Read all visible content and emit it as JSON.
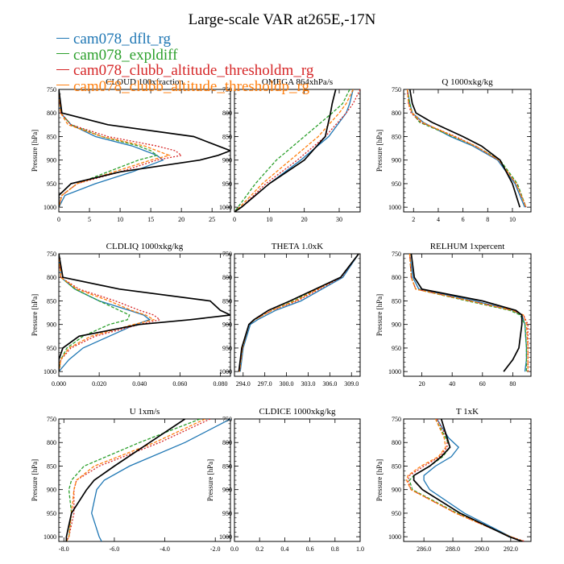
{
  "figure": {
    "title": "Large-scale VAR at265E,-17N",
    "legend": [
      {
        "label": "cam078_dflt_rg",
        "color": "#1f77b4"
      },
      {
        "label": "cam078_expldiff",
        "color": "#2ca02c"
      },
      {
        "label": "cam078_clubb_altitude_thresholdm_rg",
        "color": "#d62728"
      },
      {
        "label": "cam078_clubb_altitude_thresholdp_rg",
        "color": "#ff7f0e"
      }
    ],
    "ref_color": "#000000"
  },
  "chart_data": [
    {
      "type": "line",
      "title": "CLOUD 100xfraction",
      "ylabel": "Pressure [hPa]",
      "xlim": [
        0,
        28
      ],
      "xticks": [
        0,
        5,
        10,
        15,
        20,
        25
      ],
      "xtick_labels": [
        "0",
        "5",
        "10",
        "15",
        "20",
        "25"
      ],
      "ylim": [
        1010,
        750
      ],
      "yticks": [
        750,
        800,
        850,
        900,
        950,
        1000
      ],
      "ytick_labels": [
        "750",
        "800",
        "850",
        "900",
        "950",
        "1000"
      ],
      "y": [
        750,
        800,
        825,
        850,
        870,
        880,
        890,
        900,
        925,
        950,
        975,
        1000
      ],
      "ref": [
        0,
        0.5,
        8,
        22,
        26,
        28,
        26,
        23,
        10,
        2,
        0,
        0
      ],
      "series": [
        {
          "values": [
            0,
            0.3,
            2,
            6,
            12,
            14,
            16,
            17,
            12,
            6,
            1,
            0
          ]
        },
        {
          "values": [
            0,
            0.3,
            2,
            7,
            13,
            15,
            16,
            13,
            8,
            3,
            0.5,
            0
          ]
        },
        {
          "values": [
            0,
            0.3,
            2,
            8,
            16,
            19,
            20,
            16,
            10,
            3,
            0.5,
            0
          ]
        },
        {
          "values": [
            0,
            0.3,
            1.5,
            7,
            14,
            16,
            18,
            15,
            9,
            3,
            0.5,
            0
          ]
        }
      ]
    },
    {
      "type": "line",
      "title": "OMEGA 864xhPa/s",
      "ylabel": "",
      "xlim": [
        0,
        36
      ],
      "xticks": [
        0,
        10,
        20,
        30
      ],
      "xtick_labels": [
        "0",
        "10",
        "20",
        "30"
      ],
      "ylim": [
        1010,
        750
      ],
      "yticks": [
        750,
        800,
        850,
        900,
        950,
        1000
      ],
      "ytick_labels": [
        "750",
        "800",
        "850",
        "900",
        "950",
        "1000"
      ],
      "y": [
        750,
        780,
        800,
        850,
        900,
        950,
        1000,
        1010
      ],
      "ref": [
        29,
        28,
        27.5,
        26,
        20,
        10,
        2,
        0
      ],
      "series": [
        {
          "values": [
            34,
            33,
            32,
            27,
            19,
            10,
            2,
            0
          ]
        },
        {
          "values": [
            33,
            31,
            28,
            20,
            12,
            6,
            1,
            0
          ]
        },
        {
          "values": [
            36,
            34,
            32,
            26,
            18,
            9,
            2,
            0
          ]
        },
        {
          "values": [
            34,
            32,
            30,
            24,
            16,
            8,
            1.5,
            0
          ]
        }
      ]
    },
    {
      "type": "line",
      "title": "Q 1000xkg/kg",
      "ylabel": "Pressure [hPa]",
      "xlim": [
        1.2,
        11.5
      ],
      "xticks": [
        2,
        4,
        6,
        8,
        10
      ],
      "xtick_labels": [
        "2",
        "4",
        "6",
        "8",
        "10"
      ],
      "ylim": [
        1010,
        750
      ],
      "yticks": [
        750,
        800,
        850,
        900,
        950,
        1000
      ],
      "ytick_labels": [
        "750",
        "800",
        "850",
        "900",
        "950",
        "1000"
      ],
      "y": [
        750,
        780,
        800,
        820,
        850,
        870,
        900,
        950,
        1000
      ],
      "ref": [
        1.7,
        1.9,
        2.2,
        3.5,
        6,
        7.5,
        9,
        10,
        10.6
      ],
      "series": [
        {
          "values": [
            1.5,
            1.7,
            1.9,
            2.8,
            5,
            6.8,
            8.8,
            10.2,
            11
          ],
          "dash": "1"
        },
        {
          "values": [
            1.5,
            1.7,
            1.9,
            2.5,
            5.2,
            7,
            9,
            10.4,
            11.1
          ]
        },
        {
          "values": [
            1.5,
            1.6,
            1.8,
            2.6,
            5.4,
            7,
            8.9,
            10.3,
            11.1
          ]
        },
        {
          "values": [
            1.5,
            1.6,
            1.9,
            2.7,
            5.3,
            7,
            8.9,
            10.3,
            11.1
          ]
        }
      ]
    },
    {
      "type": "line",
      "title": "CLDLIQ 1000xkg/kg",
      "ylabel": "Pressure [hPa]",
      "xlim": [
        0,
        0.085
      ],
      "xticks": [
        0,
        0.02,
        0.04,
        0.06,
        0.08
      ],
      "xtick_labels": [
        "0.000",
        "0.020",
        "0.040",
        "0.060",
        "0.080"
      ],
      "ylim": [
        1010,
        750
      ],
      "yticks": [
        750,
        800,
        850,
        900,
        950,
        1000
      ],
      "ytick_labels": [
        "750",
        "800",
        "850",
        "900",
        "950",
        "1000"
      ],
      "y": [
        750,
        800,
        825,
        850,
        870,
        880,
        890,
        900,
        925,
        950,
        975,
        1000
      ],
      "ref": [
        0,
        0.002,
        0.03,
        0.075,
        0.08,
        0.085,
        0.065,
        0.04,
        0.01,
        0.002,
        0,
        0
      ],
      "series": [
        {
          "values": [
            0,
            0.001,
            0.008,
            0.02,
            0.035,
            0.042,
            0.045,
            0.038,
            0.025,
            0.012,
            0.005,
            0
          ]
        },
        {
          "values": [
            0,
            0.001,
            0.008,
            0.02,
            0.03,
            0.035,
            0.034,
            0.025,
            0.012,
            0.004,
            0.001,
            0
          ]
        },
        {
          "values": [
            0,
            0.001,
            0.01,
            0.028,
            0.04,
            0.047,
            0.05,
            0.04,
            0.018,
            0.006,
            0.001,
            0
          ]
        },
        {
          "values": [
            0,
            0.001,
            0.009,
            0.025,
            0.036,
            0.043,
            0.047,
            0.037,
            0.016,
            0.005,
            0.001,
            0
          ]
        }
      ]
    },
    {
      "type": "line",
      "title": "THETA 1.0xK",
      "ylabel": "",
      "xlim": [
        292.8,
        310.2
      ],
      "xticks": [
        294,
        297,
        300,
        303,
        306,
        309
      ],
      "xtick_labels": [
        "294.0",
        "297.0",
        "300.0",
        "303.0",
        "306.0",
        "309.0"
      ],
      "ylim": [
        1010,
        750
      ],
      "yticks": [
        750,
        800,
        850,
        900,
        950,
        1000
      ],
      "ytick_labels": [
        "750",
        "800",
        "850",
        "900",
        "950",
        "1000"
      ],
      "y": [
        750,
        800,
        850,
        870,
        890,
        900,
        950,
        1000
      ],
      "ref": [
        310,
        307.5,
        300.5,
        297.5,
        295.5,
        294.8,
        293.8,
        293.4
      ],
      "series": [
        {
          "values": [
            310,
            307.8,
            302,
            298.5,
            296,
            295,
            294,
            293.6
          ]
        },
        {
          "values": [
            310,
            307.5,
            301,
            298,
            295.6,
            294.8,
            293.9,
            293.5
          ]
        },
        {
          "values": [
            310,
            307.6,
            301.5,
            298,
            295.6,
            294.8,
            293.9,
            293.5
          ]
        },
        {
          "values": [
            310,
            307.5,
            301.2,
            298,
            295.6,
            294.8,
            293.9,
            293.5
          ]
        }
      ]
    },
    {
      "type": "line",
      "title": "RELHUM 1xpercent",
      "ylabel": "Pressure [hPa]",
      "xlim": [
        8,
        92
      ],
      "xticks": [
        20,
        40,
        60,
        80
      ],
      "xtick_labels": [
        "20",
        "40",
        "60",
        "80"
      ],
      "ylim": [
        1010,
        750
      ],
      "yticks": [
        750,
        800,
        850,
        900,
        950,
        1000
      ],
      "ytick_labels": [
        "750",
        "800",
        "850",
        "900",
        "950",
        "1000"
      ],
      "y": [
        750,
        800,
        825,
        850,
        870,
        880,
        900,
        950,
        975,
        1000
      ],
      "ref": [
        13,
        15,
        20,
        60,
        82,
        86,
        86,
        84,
        80,
        74
      ],
      "series": [
        {
          "values": [
            12,
            14,
            18,
            55,
            80,
            86,
            88,
            89,
            89,
            88
          ]
        },
        {
          "values": [
            12,
            13,
            16,
            50,
            78,
            85,
            88,
            89,
            89,
            89
          ]
        },
        {
          "values": [
            12,
            13,
            16,
            52,
            80,
            87,
            90,
            90,
            90,
            90
          ]
        },
        {
          "values": [
            12,
            13,
            16,
            52,
            80,
            87,
            89,
            90,
            90,
            90
          ]
        }
      ]
    },
    {
      "type": "line",
      "title": "U 1xm/s",
      "ylabel": "Pressure [hPa]",
      "xlim": [
        -8.2,
        -1.4
      ],
      "xticks": [
        -8,
        -6,
        -4,
        -2
      ],
      "xtick_labels": [
        "-8.0",
        "-6.0",
        "-4.0",
        "-2.0"
      ],
      "ylim": [
        1010,
        750
      ],
      "yticks": [
        750,
        800,
        850,
        900,
        950,
        1000
      ],
      "ytick_labels": [
        "750",
        "800",
        "850",
        "900",
        "950",
        "1000"
      ],
      "y": [
        750,
        800,
        850,
        880,
        900,
        950,
        1000,
        1010
      ],
      "ref": [
        -3.2,
        -4.6,
        -6,
        -6.8,
        -7.1,
        -7.7,
        -7.9,
        -7.9
      ],
      "series": [
        {
          "values": [
            -1.4,
            -3.2,
            -5.4,
            -6.4,
            -6.7,
            -6.9,
            -6.6,
            -6.5
          ]
        },
        {
          "values": [
            -2.6,
            -5,
            -7.2,
            -7.7,
            -7.8,
            -7.7,
            -7.8,
            -7.9
          ]
        },
        {
          "values": [
            -2.2,
            -4.2,
            -6.6,
            -7.5,
            -7.6,
            -7.6,
            -7.8,
            -7.9
          ]
        },
        {
          "values": [
            -2.4,
            -4.4,
            -6.8,
            -7.5,
            -7.6,
            -7.7,
            -7.8,
            -7.9
          ]
        }
      ]
    },
    {
      "type": "line",
      "title": "CLDICE 1000xkg/kg",
      "ylabel": "Pressure [hPa]",
      "xlim": [
        0,
        1
      ],
      "xticks": [
        0,
        0.2,
        0.4,
        0.6,
        0.8,
        1
      ],
      "xtick_labels": [
        "0.0",
        "0.2",
        "0.4",
        "0.6",
        "0.8",
        "1.0"
      ],
      "ylim": [
        1010,
        750
      ],
      "yticks": [
        750,
        800,
        850,
        900,
        950,
        1000
      ],
      "ytick_labels": [
        "750",
        "800",
        "850",
        "900",
        "950",
        "1000"
      ],
      "y": [],
      "ref": [],
      "series": []
    },
    {
      "type": "line",
      "title": "T 1xK",
      "ylabel": "Pressure [hPa]",
      "xlim": [
        284.6,
        293.4
      ],
      "xticks": [
        286,
        288,
        290,
        292
      ],
      "xtick_labels": [
        "286.0",
        "288.0",
        "290.0",
        "292.0"
      ],
      "ylim": [
        1010,
        750
      ],
      "yticks": [
        750,
        800,
        850,
        900,
        950,
        1000
      ],
      "ytick_labels": [
        "750",
        "800",
        "850",
        "900",
        "950",
        "1000"
      ],
      "y": [
        750,
        790,
        810,
        830,
        850,
        870,
        880,
        900,
        950,
        1000,
        1010
      ],
      "ref": [
        287.2,
        287.6,
        287.8,
        287.2,
        286.4,
        285.3,
        285.3,
        285.9,
        288.5,
        291.9,
        292.8
      ],
      "series": [
        {
          "values": [
            286.9,
            287.7,
            288.4,
            287.9,
            286.8,
            286,
            286,
            286.4,
            288.8,
            292,
            292.8
          ]
        },
        {
          "values": [
            286.8,
            287.5,
            287.8,
            287.3,
            286.4,
            285.3,
            285,
            285.2,
            288.3,
            292,
            292.9
          ]
        },
        {
          "values": [
            286.9,
            287.6,
            287.6,
            287.1,
            286,
            285,
            284.9,
            285.1,
            288.2,
            292,
            293
          ]
        },
        {
          "values": [
            286.8,
            287.4,
            287.5,
            287,
            285.8,
            284.9,
            284.8,
            285.1,
            288.2,
            292,
            292.9
          ]
        }
      ]
    }
  ]
}
